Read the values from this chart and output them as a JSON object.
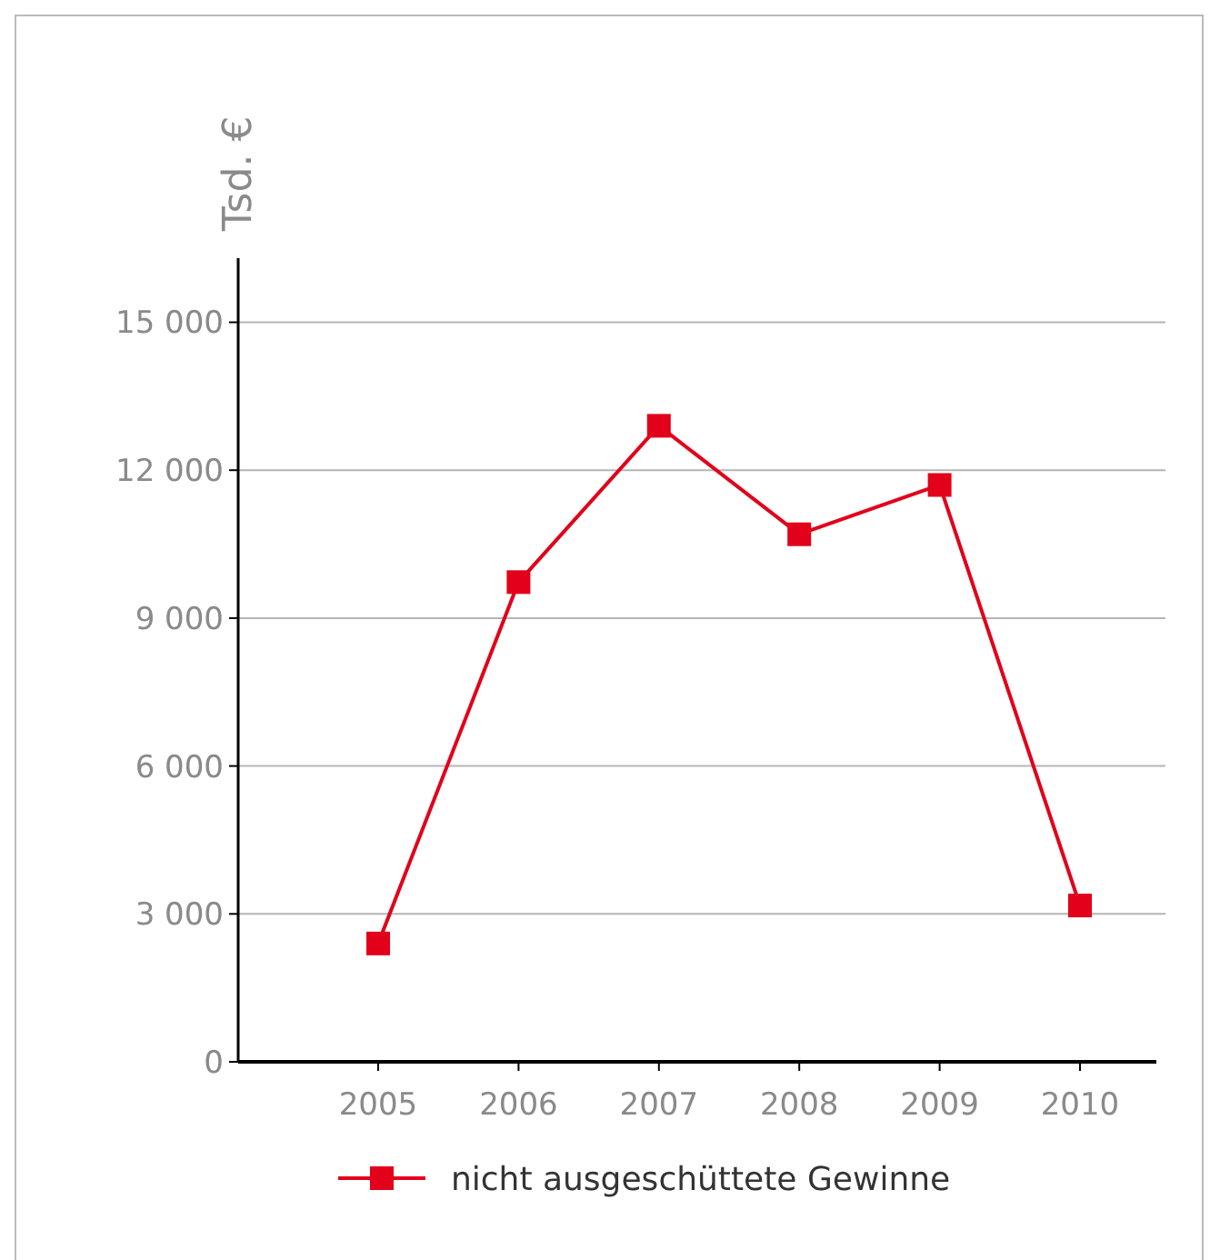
{
  "chart_data": {
    "type": "line",
    "ylabel": "Tsd. €",
    "categories": [
      "2005",
      "2006",
      "2007",
      "2008",
      "2009",
      "2010"
    ],
    "series": [
      {
        "name": "nicht ausgeschüttete Gewinne",
        "color": "#e2001a",
        "values": [
          2400,
          9730,
          12900,
          10700,
          11700,
          3170
        ]
      }
    ],
    "ylim": [
      0,
      16300
    ],
    "yticks": [
      {
        "value": 0,
        "label": "0"
      },
      {
        "value": 3000,
        "label": "3 000"
      },
      {
        "value": 6000,
        "label": "6 000"
      },
      {
        "value": 9000,
        "label": "9 000"
      },
      {
        "value": 12000,
        "label": "12 000"
      },
      {
        "value": 15000,
        "label": "15 000"
      }
    ],
    "grid": "y",
    "legend": "bottom",
    "marker": "square",
    "line_style": "solid"
  }
}
